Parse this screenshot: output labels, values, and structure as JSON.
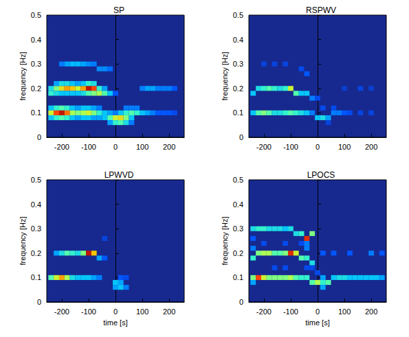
{
  "chart_data": [
    {
      "type": "heatmap",
      "title": "SP",
      "ylabel": "frequency [Hz]",
      "xlim": [
        -256,
        256
      ],
      "xticks": [
        -200,
        -100,
        0,
        100,
        200
      ],
      "ylim": [
        0,
        0.5
      ],
      "yticks": [
        0,
        0.1,
        0.2,
        0.3,
        0.4,
        0.5
      ],
      "zlim": [
        0,
        1
      ],
      "cells": [
        [
          -240,
          0.1,
          0.6
        ],
        [
          -220,
          0.1,
          0.85
        ],
        [
          -200,
          0.1,
          0.95
        ],
        [
          -180,
          0.1,
          0.8
        ],
        [
          -160,
          0.1,
          0.55
        ],
        [
          -140,
          0.1,
          0.5
        ],
        [
          -120,
          0.1,
          0.55
        ],
        [
          -100,
          0.1,
          0.6
        ],
        [
          -80,
          0.1,
          0.5
        ],
        [
          -60,
          0.1,
          0.4
        ],
        [
          -40,
          0.1,
          0.3
        ],
        [
          -20,
          0.1,
          0.25
        ],
        [
          0,
          0.1,
          0.2
        ],
        [
          20,
          0.1,
          0.3
        ],
        [
          40,
          0.1,
          0.4
        ],
        [
          60,
          0.1,
          0.45
        ],
        [
          80,
          0.1,
          0.4
        ],
        [
          100,
          0.1,
          0.3
        ],
        [
          120,
          0.1,
          0.25
        ],
        [
          140,
          0.1,
          0.2
        ],
        [
          160,
          0.1,
          0.15
        ],
        [
          180,
          0.1,
          0.15
        ],
        [
          200,
          0.1,
          0.15
        ],
        [
          220,
          0.1,
          0.12
        ],
        [
          -240,
          0.12,
          0.3
        ],
        [
          -220,
          0.12,
          0.4
        ],
        [
          -200,
          0.12,
          0.45
        ],
        [
          -180,
          0.12,
          0.4
        ],
        [
          -160,
          0.12,
          0.3
        ],
        [
          -140,
          0.12,
          0.25
        ],
        [
          -120,
          0.12,
          0.3
        ],
        [
          -100,
          0.12,
          0.3
        ],
        [
          -80,
          0.12,
          0.25
        ],
        [
          -60,
          0.12,
          0.2
        ],
        [
          40,
          0.12,
          0.2
        ],
        [
          60,
          0.12,
          0.2
        ],
        [
          80,
          0.12,
          0.2
        ],
        [
          -240,
          0.08,
          0.3
        ],
        [
          -220,
          0.08,
          0.4
        ],
        [
          -200,
          0.08,
          0.45
        ],
        [
          -180,
          0.08,
          0.4
        ],
        [
          -160,
          0.08,
          0.3
        ],
        [
          -140,
          0.08,
          0.25
        ],
        [
          -120,
          0.08,
          0.3
        ],
        [
          -100,
          0.08,
          0.3
        ],
        [
          -80,
          0.08,
          0.25
        ],
        [
          -60,
          0.08,
          0.25
        ],
        [
          -40,
          0.08,
          0.3
        ],
        [
          -20,
          0.08,
          0.45
        ],
        [
          0,
          0.08,
          0.6
        ],
        [
          20,
          0.08,
          0.65
        ],
        [
          40,
          0.08,
          0.5
        ],
        [
          60,
          0.08,
          0.3
        ],
        [
          -20,
          0.06,
          0.25
        ],
        [
          0,
          0.06,
          0.4
        ],
        [
          20,
          0.06,
          0.45
        ],
        [
          40,
          0.06,
          0.35
        ],
        [
          60,
          0.06,
          0.2
        ],
        [
          -240,
          0.2,
          0.35
        ],
        [
          -220,
          0.2,
          0.5
        ],
        [
          -200,
          0.2,
          0.65
        ],
        [
          -180,
          0.2,
          0.75
        ],
        [
          -160,
          0.2,
          0.7
        ],
        [
          -140,
          0.2,
          0.6
        ],
        [
          -120,
          0.2,
          0.75
        ],
        [
          -100,
          0.2,
          0.95
        ],
        [
          -80,
          0.2,
          0.85
        ],
        [
          -60,
          0.2,
          0.4
        ],
        [
          -40,
          0.2,
          0.25
        ],
        [
          100,
          0.2,
          0.2
        ],
        [
          120,
          0.2,
          0.25
        ],
        [
          140,
          0.2,
          0.25
        ],
        [
          160,
          0.2,
          0.2
        ],
        [
          180,
          0.2,
          0.2
        ],
        [
          200,
          0.2,
          0.2
        ],
        [
          220,
          0.2,
          0.15
        ],
        [
          -240,
          0.18,
          0.4
        ],
        [
          -220,
          0.18,
          0.35
        ],
        [
          -200,
          0.18,
          0.3
        ],
        [
          -180,
          0.18,
          0.3
        ],
        [
          -160,
          0.18,
          0.3
        ],
        [
          -140,
          0.18,
          0.3
        ],
        [
          -120,
          0.18,
          0.35
        ],
        [
          -100,
          0.18,
          0.45
        ],
        [
          -80,
          0.18,
          0.5
        ],
        [
          -60,
          0.18,
          0.55
        ],
        [
          -40,
          0.18,
          0.45
        ],
        [
          -20,
          0.18,
          0.3
        ],
        [
          0,
          0.18,
          0.15
        ],
        [
          -220,
          0.22,
          0.25
        ],
        [
          -200,
          0.22,
          0.35
        ],
        [
          -180,
          0.22,
          0.35
        ],
        [
          -160,
          0.22,
          0.3
        ],
        [
          -140,
          0.22,
          0.25
        ],
        [
          -120,
          0.22,
          0.3
        ],
        [
          -100,
          0.22,
          0.4
        ],
        [
          -80,
          0.22,
          0.35
        ],
        [
          -200,
          0.3,
          0.2
        ],
        [
          -180,
          0.3,
          0.25
        ],
        [
          -160,
          0.3,
          0.28
        ],
        [
          -140,
          0.3,
          0.28
        ],
        [
          -120,
          0.3,
          0.25
        ],
        [
          -100,
          0.3,
          0.22
        ],
        [
          -80,
          0.3,
          0.2
        ],
        [
          -60,
          0.28,
          0.22
        ],
        [
          -40,
          0.28,
          0.22
        ],
        [
          -20,
          0.28,
          0.18
        ]
      ]
    },
    {
      "type": "heatmap",
      "title": "RSPWV",
      "ylabel": "frequency [Hz]",
      "xlim": [
        -256,
        256
      ],
      "xticks": [
        -200,
        -100,
        0,
        100,
        200
      ],
      "ylim": [
        0,
        0.5
      ],
      "yticks": [
        0,
        0.1,
        0.2,
        0.3,
        0.4,
        0.5
      ],
      "zlim": [
        0,
        1
      ],
      "cells": [
        [
          -240,
          0.18,
          0.3
        ],
        [
          -220,
          0.2,
          0.35
        ],
        [
          -200,
          0.2,
          0.4
        ],
        [
          -180,
          0.2,
          0.45
        ],
        [
          -160,
          0.2,
          0.4
        ],
        [
          -140,
          0.2,
          0.35
        ],
        [
          -120,
          0.2,
          0.4
        ],
        [
          -100,
          0.2,
          0.6
        ],
        [
          -80,
          0.18,
          0.45
        ],
        [
          -60,
          0.18,
          0.3
        ],
        [
          -40,
          0.18,
          0.3
        ],
        [
          -20,
          0.16,
          0.2
        ],
        [
          0,
          0.16,
          0.12
        ],
        [
          -240,
          0.1,
          0.3
        ],
        [
          -220,
          0.1,
          0.45
        ],
        [
          -200,
          0.1,
          0.5
        ],
        [
          -180,
          0.1,
          0.45
        ],
        [
          -160,
          0.1,
          0.35
        ],
        [
          -140,
          0.1,
          0.35
        ],
        [
          -120,
          0.1,
          0.4
        ],
        [
          -100,
          0.1,
          0.45
        ],
        [
          -80,
          0.1,
          0.4
        ],
        [
          -60,
          0.1,
          0.35
        ],
        [
          -40,
          0.1,
          0.3
        ],
        [
          -20,
          0.1,
          0.2
        ],
        [
          0,
          0.08,
          0.3
        ],
        [
          20,
          0.08,
          0.35
        ],
        [
          40,
          0.08,
          0.25
        ],
        [
          60,
          0.1,
          0.2
        ],
        [
          80,
          0.1,
          0.2
        ],
        [
          100,
          0.1,
          0.15
        ],
        [
          120,
          0.1,
          0.12
        ],
        [
          160,
          0.1,
          0.1
        ],
        [
          200,
          0.1,
          0.1
        ],
        [
          -200,
          0.3,
          0.1
        ],
        [
          -160,
          0.3,
          0.1
        ],
        [
          -120,
          0.3,
          0.1
        ],
        [
          -60,
          0.28,
          0.12
        ],
        [
          -40,
          0.26,
          0.15
        ],
        [
          20,
          0.12,
          0.12
        ],
        [
          60,
          0.12,
          0.12
        ],
        [
          40,
          0.06,
          0.1
        ],
        [
          100,
          0.2,
          0.08
        ],
        [
          160,
          0.2,
          0.1
        ],
        [
          200,
          0.2,
          0.08
        ]
      ]
    },
    {
      "type": "heatmap",
      "title": "LPWVD",
      "xlabel": "time [s]",
      "ylabel": "frequency [Hz]",
      "xlim": [
        -256,
        256
      ],
      "xticks": [
        -200,
        -100,
        0,
        100,
        200
      ],
      "ylim": [
        0,
        0.5
      ],
      "yticks": [
        0,
        0.1,
        0.2,
        0.3,
        0.4,
        0.5
      ],
      "zlim": [
        0,
        1
      ],
      "cells": [
        [
          -220,
          0.2,
          0.25
        ],
        [
          -200,
          0.2,
          0.35
        ],
        [
          -180,
          0.2,
          0.45
        ],
        [
          -160,
          0.2,
          0.4
        ],
        [
          -140,
          0.2,
          0.35
        ],
        [
          -120,
          0.2,
          0.5
        ],
        [
          -100,
          0.2,
          0.95
        ],
        [
          -80,
          0.2,
          0.7
        ],
        [
          -60,
          0.18,
          0.25
        ],
        [
          -40,
          0.18,
          0.15
        ],
        [
          -240,
          0.1,
          0.45
        ],
        [
          -220,
          0.1,
          0.6
        ],
        [
          -200,
          0.1,
          0.75
        ],
        [
          -180,
          0.1,
          0.55
        ],
        [
          -160,
          0.1,
          0.35
        ],
        [
          -140,
          0.1,
          0.3
        ],
        [
          -120,
          0.1,
          0.3
        ],
        [
          -100,
          0.1,
          0.3
        ],
        [
          -80,
          0.1,
          0.25
        ],
        [
          -60,
          0.1,
          0.2
        ],
        [
          0,
          0.08,
          0.3
        ],
        [
          20,
          0.08,
          0.25
        ],
        [
          0,
          0.06,
          0.25
        ],
        [
          20,
          0.06,
          0.3
        ],
        [
          40,
          0.06,
          0.2
        ],
        [
          20,
          0.1,
          0.15
        ],
        [
          40,
          0.1,
          0.12
        ],
        [
          -40,
          0.26,
          0.1
        ]
      ]
    },
    {
      "type": "heatmap",
      "title": "LPOCS",
      "xlabel": "time [s]",
      "ylabel": "frequency [Hz]",
      "xlim": [
        -256,
        256
      ],
      "xticks": [
        -200,
        -100,
        0,
        100,
        200
      ],
      "ylim": [
        0,
        0.5
      ],
      "yticks": [
        0,
        0.1,
        0.2,
        0.3,
        0.4,
        0.5
      ],
      "zlim": [
        0,
        1
      ],
      "cells": [
        [
          -240,
          0.3,
          0.35
        ],
        [
          -220,
          0.3,
          0.4
        ],
        [
          -200,
          0.3,
          0.4
        ],
        [
          -180,
          0.3,
          0.35
        ],
        [
          -160,
          0.3,
          0.35
        ],
        [
          -140,
          0.3,
          0.35
        ],
        [
          -120,
          0.3,
          0.3
        ],
        [
          -100,
          0.3,
          0.35
        ],
        [
          -80,
          0.28,
          0.35
        ],
        [
          -60,
          0.28,
          0.4
        ],
        [
          -40,
          0.26,
          0.9
        ],
        [
          -20,
          0.28,
          0.5
        ],
        [
          -240,
          0.18,
          0.4
        ],
        [
          -220,
          0.2,
          0.5
        ],
        [
          -200,
          0.2,
          0.55
        ],
        [
          -180,
          0.2,
          0.55
        ],
        [
          -160,
          0.2,
          0.45
        ],
        [
          -140,
          0.2,
          0.45
        ],
        [
          -120,
          0.2,
          0.5
        ],
        [
          -100,
          0.2,
          0.9
        ],
        [
          -80,
          0.2,
          0.6
        ],
        [
          -60,
          0.18,
          0.45
        ],
        [
          -40,
          0.18,
          0.4
        ],
        [
          -20,
          0.16,
          0.35
        ],
        [
          20,
          0.2,
          0.15
        ],
        [
          60,
          0.2,
          0.15
        ],
        [
          120,
          0.2,
          0.15
        ],
        [
          200,
          0.2,
          0.2
        ],
        [
          240,
          0.2,
          0.15
        ],
        [
          -240,
          0.1,
          0.5
        ],
        [
          -220,
          0.1,
          0.85
        ],
        [
          -200,
          0.1,
          0.6
        ],
        [
          -180,
          0.1,
          0.5
        ],
        [
          -160,
          0.1,
          0.5
        ],
        [
          -140,
          0.1,
          0.5
        ],
        [
          -120,
          0.1,
          0.5
        ],
        [
          -100,
          0.1,
          0.55
        ],
        [
          -80,
          0.1,
          0.45
        ],
        [
          -60,
          0.1,
          0.4
        ],
        [
          -40,
          0.1,
          0.4
        ],
        [
          -20,
          0.08,
          0.45
        ],
        [
          0,
          0.08,
          0.55
        ],
        [
          20,
          0.08,
          0.4
        ],
        [
          40,
          0.08,
          0.45
        ],
        [
          60,
          0.1,
          0.3
        ],
        [
          80,
          0.1,
          0.35
        ],
        [
          100,
          0.1,
          0.35
        ],
        [
          120,
          0.1,
          0.3
        ],
        [
          140,
          0.1,
          0.3
        ],
        [
          160,
          0.1,
          0.3
        ],
        [
          180,
          0.1,
          0.3
        ],
        [
          200,
          0.1,
          0.3
        ],
        [
          220,
          0.1,
          0.3
        ],
        [
          240,
          0.1,
          0.25
        ],
        [
          20,
          0.06,
          0.25
        ],
        [
          20,
          0.1,
          0.25
        ],
        [
          0,
          0.12,
          0.12
        ],
        [
          -20,
          0.14,
          0.12
        ],
        [
          -40,
          0.14,
          0.12
        ],
        [
          -60,
          0.24,
          0.12
        ],
        [
          -120,
          0.24,
          0.12
        ],
        [
          -200,
          0.24,
          0.12
        ],
        [
          -160,
          0.14,
          0.12
        ],
        [
          -120,
          0.14,
          0.12
        ],
        [
          -240,
          0.22,
          0.2
        ],
        [
          -240,
          0.26,
          0.15
        ],
        [
          -240,
          0.08,
          0.25
        ],
        [
          -40,
          0.22,
          0.2
        ],
        [
          -40,
          0.24,
          0.2
        ]
      ]
    }
  ]
}
